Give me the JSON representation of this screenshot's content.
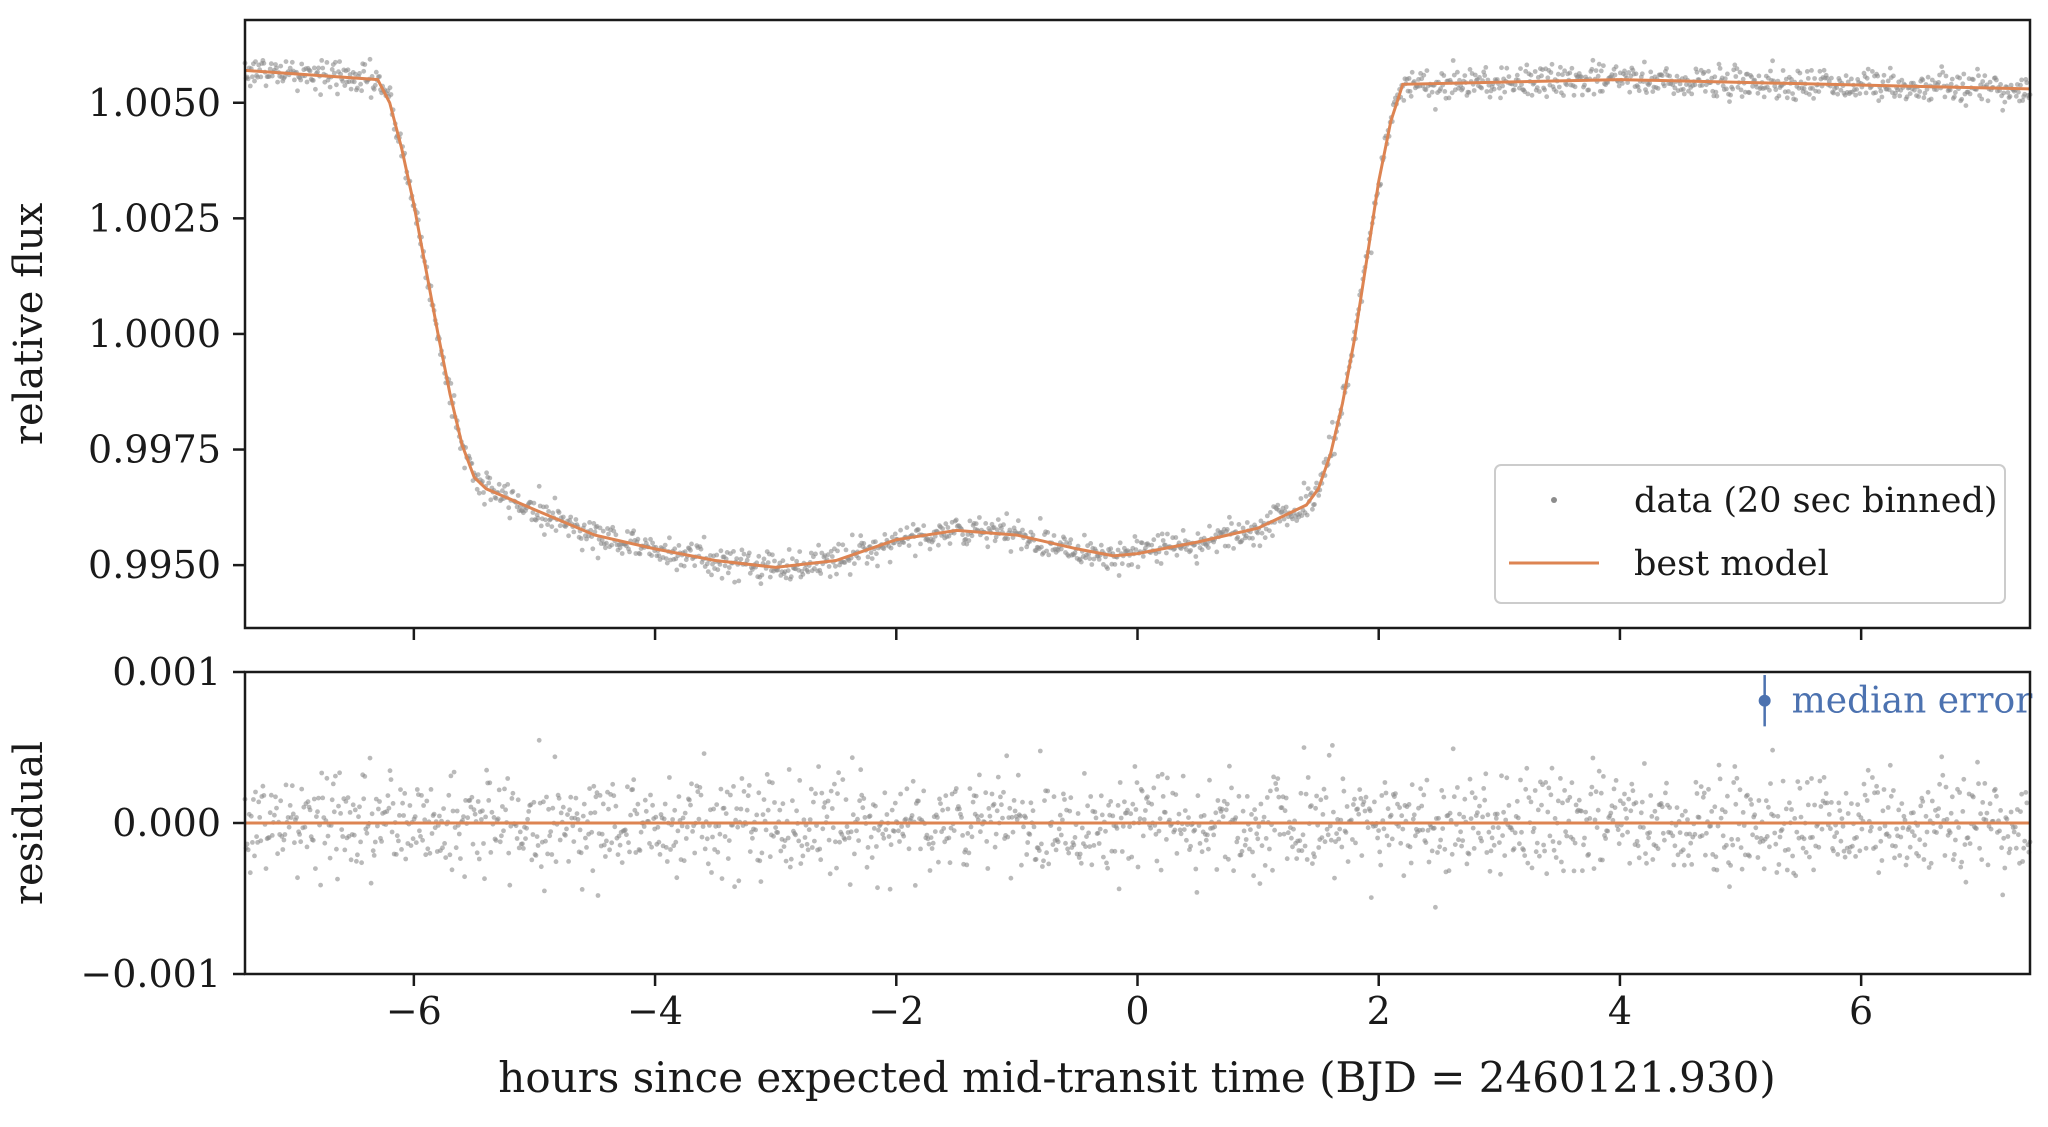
{
  "colors": {
    "data": "#8c8c8c",
    "model": "#dd8452",
    "median_error": "#4c72b0",
    "axes": "#1a1a1a"
  },
  "chart_data": [
    {
      "type": "scatter",
      "panel": "top",
      "xlabel": "",
      "ylabel": "relative flux",
      "xlim": [
        -7.4,
        7.4
      ],
      "ylim": [
        0.99364,
        1.00679
      ],
      "x_ticks": [
        -6,
        -4,
        -2,
        0,
        2,
        4,
        6
      ],
      "y_ticks": [
        0.995,
        0.9975,
        1.0,
        1.0025,
        1.005
      ],
      "y_tick_labels": [
        "0.9950",
        "0.9975",
        "1.0000",
        "1.0025",
        "1.0050"
      ],
      "legend": {
        "placement": "lower right",
        "data_label": "data (20 sec binned)",
        "model_label": "best model"
      },
      "data_sampling": {
        "x_start": -7.4,
        "x_end": 7.4,
        "n_points": 1700,
        "scatter_sigma": 0.00017
      },
      "series": [
        {
          "kind": "line",
          "x": [
            -7.4,
            -6.3,
            -6.2,
            -6.1,
            -6.0,
            -5.9,
            -5.8,
            -5.7,
            -5.6,
            -5.5,
            -5.4,
            -5.0,
            -4.5,
            -4.0,
            -3.5,
            -3.0,
            -2.5,
            -2.0,
            -1.5,
            -1.0,
            -0.5,
            -0.2,
            0.0,
            0.5,
            1.0,
            1.4,
            1.5,
            1.6,
            1.7,
            1.8,
            1.9,
            2.0,
            2.1,
            2.2,
            4.0,
            7.4
          ],
          "y": [
            1.0057,
            1.0055,
            1.005,
            1.004,
            1.0028,
            1.0014,
            1.0,
            0.9987,
            0.9976,
            0.9969,
            0.99665,
            0.9962,
            0.99565,
            0.99535,
            0.9951,
            0.99495,
            0.9951,
            0.99555,
            0.99575,
            0.99565,
            0.99535,
            0.9952,
            0.99525,
            0.9955,
            0.9958,
            0.9963,
            0.99665,
            0.9974,
            0.9985,
            0.9999,
            1.0016,
            1.0033,
            1.0046,
            1.0054,
            1.0055,
            1.0053
          ]
        }
      ]
    },
    {
      "type": "scatter",
      "panel": "bottom",
      "xlabel": "hours since expected mid-transit time (BJD = 2460121.930)",
      "ylabel": "residual",
      "xlim": [
        -7.4,
        7.4
      ],
      "ylim": [
        -0.001,
        0.001
      ],
      "x_ticks": [
        -6,
        -4,
        -2,
        0,
        2,
        4,
        6
      ],
      "x_tick_labels": [
        "−6",
        "−4",
        "−2",
        "0",
        "2",
        "4",
        "6"
      ],
      "y_ticks": [
        -0.001,
        0.0,
        0.001
      ],
      "y_tick_labels": [
        "−0.001",
        "0.000",
        "0.001"
      ],
      "zero_line": 0.0,
      "median_error": {
        "label": "median error",
        "x": 5.2,
        "y": 0.00081,
        "err": 0.00017
      }
    }
  ]
}
